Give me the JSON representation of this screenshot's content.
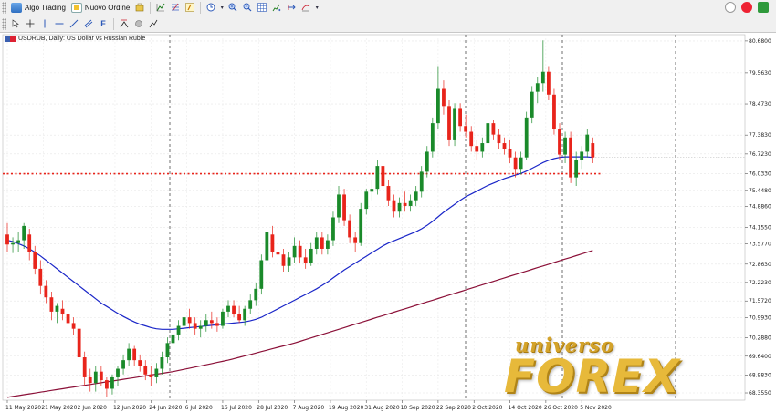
{
  "toolbar1": {
    "algo_trading_label": "Algo Trading",
    "new_order_label": "Nuovo Ordine"
  },
  "icons": {
    "toolbar1": [
      "one-click-trading-icon",
      "lines-icon",
      "fibonacci-icon",
      "text-tool-icon",
      "history-icon",
      "zoom-in-icon",
      "zoom-out-icon",
      "grid-icon",
      "autoscroll-icon",
      "chart-shift-icon",
      "indicators-icon"
    ],
    "toolbar2": [
      "cursor-icon",
      "crosshair-icon",
      "vertical-line-icon",
      "horizontal-line-icon",
      "trendline-icon",
      "channel-icon",
      "fibonacci-retracement-icon",
      "text-icon",
      "shapes-icon",
      "arrows-icon"
    ]
  },
  "chart_title": "USDRUB, Daily: US Dollar vs Russian Ruble",
  "watermark": {
    "top": "universo",
    "main": "FOREX"
  },
  "colors": {
    "bull": "#1a8a2a",
    "bear": "#e8241b",
    "ma_fast": "#1a26c8",
    "ma_slow": "#8b1038",
    "support": "#e8241b"
  },
  "chart_data": {
    "type": "candlestick",
    "x_labels": [
      "11 May 2020",
      "21 May 2020",
      "2 Jun 2020",
      "12 Jun 2020",
      "24 Jun 2020",
      "6 Jul 2020",
      "16 Jul 2020",
      "28 Jul 2020",
      "7 Aug 2020",
      "19 Aug 2020",
      "31 Aug 2020",
      "10 Sep 2020",
      "22 Sep 2020",
      "2 Oct 2020",
      "14 Oct 2020",
      "26 Oct 2020",
      "5 Nov 2020"
    ],
    "y_ticks": [
      "80.6800",
      "79.5630",
      "78.4730",
      "77.3830",
      "76.7230",
      "76.0330",
      "75.4480",
      "74.8860",
      "74.1550",
      "73.5770",
      "72.8630",
      "72.2230",
      "71.5720",
      "70.9930",
      "70.2880",
      "69.6400",
      "68.9830",
      "68.3550"
    ],
    "ylim": [
      68.1,
      80.9
    ],
    "support_level": 76.03,
    "ohlc": [
      [
        73.9,
        74.3,
        73.3,
        73.55
      ],
      [
        73.55,
        73.8,
        73.25,
        73.6
      ],
      [
        73.6,
        74.0,
        73.3,
        73.7
      ],
      [
        73.7,
        74.3,
        73.4,
        74.2
      ],
      [
        73.9,
        74.1,
        73.0,
        73.3
      ],
      [
        73.3,
        73.5,
        72.5,
        72.7
      ],
      [
        72.7,
        73.0,
        71.8,
        72.1
      ],
      [
        72.1,
        72.3,
        71.5,
        71.7
      ],
      [
        71.7,
        71.9,
        70.9,
        71.2
      ],
      [
        71.2,
        71.5,
        70.8,
        71.4
      ],
      [
        71.3,
        71.6,
        70.9,
        71.1
      ],
      [
        71.1,
        71.3,
        70.5,
        70.8
      ],
      [
        70.8,
        71.0,
        70.4,
        70.6
      ],
      [
        70.6,
        70.8,
        69.3,
        69.6
      ],
      [
        69.6,
        69.8,
        68.6,
        68.9
      ],
      [
        68.9,
        69.2,
        68.4,
        68.7
      ],
      [
        68.7,
        69.3,
        68.4,
        69.1
      ],
      [
        69.1,
        69.3,
        68.6,
        68.8
      ],
      [
        68.8,
        68.9,
        68.2,
        68.5
      ],
      [
        68.5,
        69.0,
        68.3,
        68.9
      ],
      [
        68.9,
        69.3,
        68.6,
        69.2
      ],
      [
        69.2,
        69.7,
        69.0,
        69.5
      ],
      [
        69.5,
        70.1,
        69.3,
        69.9
      ],
      [
        69.9,
        70.0,
        69.3,
        69.5
      ],
      [
        69.5,
        69.7,
        69.1,
        69.3
      ],
      [
        69.3,
        69.5,
        68.8,
        69.0
      ],
      [
        69.0,
        69.3,
        68.6,
        68.9
      ],
      [
        68.9,
        69.4,
        68.7,
        69.2
      ],
      [
        69.2,
        69.8,
        69.0,
        69.6
      ],
      [
        69.6,
        70.3,
        69.4,
        70.1
      ],
      [
        70.1,
        70.6,
        69.9,
        70.4
      ],
      [
        70.4,
        70.9,
        70.2,
        70.7
      ],
      [
        70.7,
        71.2,
        70.5,
        71.0
      ],
      [
        71.0,
        71.3,
        70.6,
        70.8
      ],
      [
        70.8,
        71.0,
        70.4,
        70.6
      ],
      [
        70.6,
        70.9,
        70.3,
        70.7
      ],
      [
        70.7,
        71.1,
        70.5,
        70.9
      ],
      [
        70.9,
        71.2,
        70.6,
        70.8
      ],
      [
        70.8,
        71.0,
        70.5,
        70.7
      ],
      [
        70.7,
        71.3,
        70.6,
        71.2
      ],
      [
        71.2,
        71.6,
        71.0,
        71.4
      ],
      [
        71.4,
        71.6,
        71.0,
        71.1
      ],
      [
        71.1,
        71.4,
        70.8,
        70.9
      ],
      [
        70.9,
        71.4,
        70.7,
        71.3
      ],
      [
        71.3,
        71.8,
        71.1,
        71.6
      ],
      [
        71.6,
        72.2,
        71.4,
        72.0
      ],
      [
        72.0,
        73.2,
        71.8,
        73.0
      ],
      [
        73.0,
        74.2,
        72.8,
        74.0
      ],
      [
        73.9,
        74.2,
        73.1,
        73.3
      ],
      [
        73.3,
        73.6,
        72.9,
        73.2
      ],
      [
        73.2,
        73.4,
        72.6,
        72.8
      ],
      [
        72.8,
        73.3,
        72.6,
        73.1
      ],
      [
        73.1,
        73.8,
        72.9,
        73.5
      ],
      [
        73.5,
        73.7,
        72.9,
        73.1
      ],
      [
        73.1,
        73.4,
        72.7,
        72.9
      ],
      [
        72.9,
        73.6,
        72.8,
        73.4
      ],
      [
        73.4,
        74.0,
        73.2,
        73.8
      ],
      [
        73.8,
        74.0,
        73.2,
        73.4
      ],
      [
        73.4,
        73.9,
        73.2,
        73.7
      ],
      [
        73.7,
        74.7,
        73.5,
        74.5
      ],
      [
        74.5,
        75.6,
        74.3,
        75.3
      ],
      [
        75.3,
        75.5,
        74.2,
        74.4
      ],
      [
        74.4,
        74.6,
        73.6,
        73.8
      ],
      [
        73.8,
        74.0,
        73.3,
        73.6
      ],
      [
        73.6,
        75.0,
        73.5,
        74.8
      ],
      [
        74.8,
        75.5,
        74.6,
        75.4
      ],
      [
        75.4,
        75.8,
        75.1,
        75.5
      ],
      [
        75.5,
        76.5,
        75.3,
        76.3
      ],
      [
        76.3,
        76.4,
        75.5,
        75.6
      ],
      [
        75.6,
        75.8,
        74.9,
        75.1
      ],
      [
        75.1,
        75.3,
        74.5,
        74.7
      ],
      [
        74.7,
        75.2,
        74.5,
        75.0
      ],
      [
        75.0,
        75.4,
        74.7,
        74.9
      ],
      [
        74.9,
        75.3,
        74.7,
        75.1
      ],
      [
        75.1,
        75.6,
        74.9,
        75.4
      ],
      [
        75.4,
        76.3,
        75.2,
        76.1
      ],
      [
        76.1,
        77.0,
        75.9,
        76.8
      ],
      [
        76.8,
        78.0,
        76.6,
        77.8
      ],
      [
        77.8,
        79.8,
        77.6,
        79.0
      ],
      [
        79.0,
        79.3,
        78.1,
        78.4
      ],
      [
        78.4,
        78.6,
        77.0,
        77.2
      ],
      [
        77.2,
        78.5,
        77.0,
        78.3
      ],
      [
        78.3,
        78.5,
        77.5,
        77.7
      ],
      [
        77.7,
        78.1,
        77.3,
        77.5
      ],
      [
        77.5,
        77.7,
        76.8,
        77.0
      ],
      [
        77.0,
        77.2,
        76.5,
        76.8
      ],
      [
        76.8,
        77.3,
        76.6,
        77.1
      ],
      [
        77.1,
        78.0,
        76.9,
        77.8
      ],
      [
        77.8,
        77.9,
        77.2,
        77.4
      ],
      [
        77.4,
        77.6,
        76.9,
        77.1
      ],
      [
        77.1,
        77.3,
        76.7,
        76.9
      ],
      [
        76.9,
        77.2,
        76.4,
        76.6
      ],
      [
        76.6,
        76.8,
        75.9,
        76.2
      ],
      [
        76.2,
        76.8,
        76.0,
        76.6
      ],
      [
        76.6,
        78.2,
        76.5,
        78.0
      ],
      [
        78.0,
        79.1,
        77.8,
        78.9
      ],
      [
        78.9,
        79.4,
        78.5,
        79.2
      ],
      [
        79.2,
        80.7,
        78.9,
        79.6
      ],
      [
        79.6,
        79.8,
        78.6,
        78.8
      ],
      [
        78.8,
        79.0,
        77.4,
        77.6
      ],
      [
        77.6,
        77.8,
        76.5,
        76.7
      ],
      [
        76.7,
        77.5,
        76.4,
        77.3
      ],
      [
        77.3,
        77.5,
        75.7,
        75.9
      ],
      [
        75.9,
        76.8,
        75.6,
        76.5
      ],
      [
        76.5,
        77.0,
        76.2,
        76.8
      ],
      [
        76.8,
        77.6,
        76.6,
        77.4
      ],
      [
        77.1,
        77.3,
        76.4,
        76.6
      ]
    ],
    "ma_fast": [
      73.7,
      73.65,
      73.58,
      73.5,
      73.4,
      73.28,
      73.15,
      73.0,
      72.85,
      72.7,
      72.55,
      72.4,
      72.25,
      72.1,
      71.95,
      71.8,
      71.65,
      71.5,
      71.38,
      71.26,
      71.14,
      71.03,
      70.93,
      70.84,
      70.76,
      70.7,
      70.64,
      70.6,
      70.58,
      70.58,
      70.58,
      70.6,
      70.62,
      70.64,
      70.66,
      70.68,
      70.7,
      70.72,
      70.74,
      70.76,
      70.78,
      70.8,
      70.82,
      70.84,
      70.88,
      70.93,
      71.0,
      71.1,
      71.2,
      71.3,
      71.4,
      71.5,
      71.6,
      71.7,
      71.8,
      71.9,
      72.0,
      72.12,
      72.24,
      72.38,
      72.52,
      72.66,
      72.78,
      72.9,
      73.02,
      73.14,
      73.26,
      73.38,
      73.5,
      73.6,
      73.68,
      73.76,
      73.84,
      73.92,
      74.0,
      74.1,
      74.22,
      74.36,
      74.52,
      74.68,
      74.82,
      74.96,
      75.1,
      75.22,
      75.32,
      75.42,
      75.52,
      75.62,
      75.7,
      75.78,
      75.86,
      75.92,
      75.98,
      76.04,
      76.12,
      76.22,
      76.32,
      76.42,
      76.5,
      76.56,
      76.6,
      76.62,
      76.62,
      76.62,
      76.62,
      76.62,
      76.6
    ],
    "ma_slow": [
      68.2,
      68.23,
      68.26,
      68.29,
      68.32,
      68.35,
      68.38,
      68.41,
      68.44,
      68.47,
      68.5,
      68.53,
      68.56,
      68.59,
      68.62,
      68.65,
      68.68,
      68.71,
      68.74,
      68.77,
      68.8,
      68.83,
      68.86,
      68.89,
      68.92,
      68.95,
      68.98,
      69.01,
      69.04,
      69.07,
      69.1,
      69.14,
      69.18,
      69.22,
      69.26,
      69.3,
      69.34,
      69.38,
      69.42,
      69.46,
      69.5,
      69.55,
      69.6,
      69.65,
      69.7,
      69.75,
      69.8,
      69.85,
      69.9,
      69.95,
      70.0,
      70.05,
      70.1,
      70.16,
      70.22,
      70.28,
      70.34,
      70.4,
      70.46,
      70.52,
      70.58,
      70.64,
      70.7,
      70.76,
      70.82,
      70.88,
      70.94,
      71.0,
      71.06,
      71.12,
      71.18,
      71.24,
      71.3,
      71.36,
      71.42,
      71.48,
      71.54,
      71.6,
      71.66,
      71.72,
      71.78,
      71.84,
      71.9,
      71.96,
      72.02,
      72.08,
      72.14,
      72.2,
      72.26,
      72.32,
      72.38,
      72.44,
      72.5,
      72.56,
      72.62,
      72.68,
      72.74,
      72.8,
      72.86,
      72.92,
      72.98,
      73.04,
      73.1,
      73.16,
      73.22,
      73.28,
      73.34
    ]
  }
}
